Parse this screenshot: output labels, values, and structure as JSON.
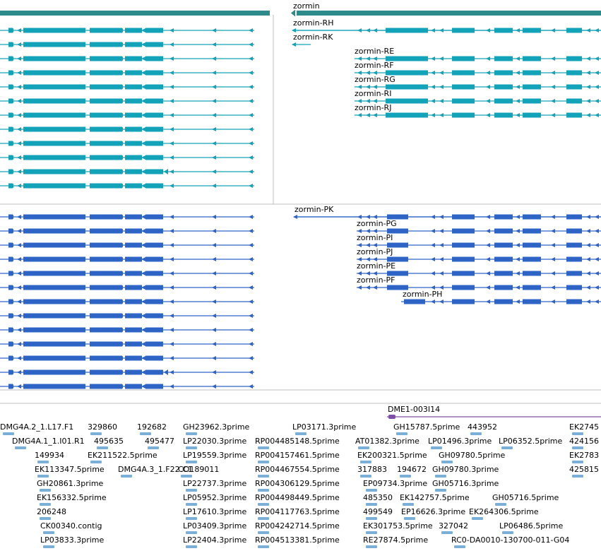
{
  "colors": {
    "gene_bar": "#2e8b8b",
    "transcript_teal": "#13a3b8",
    "transcript_blue": "#2f64c7",
    "est": "#7ab0d8",
    "primer": "#7f4fa8",
    "divider": "#bfbfbf"
  },
  "gene_label": "zormin",
  "teal_labels": [
    "zormin-RH",
    "zormin-RK",
    "zormin-RE",
    "zormin-RF",
    "zormin-RG",
    "zormin-RI",
    "zormin-RJ"
  ],
  "blue_labels": [
    "zormin-PK",
    "zormin-PG",
    "zormin-PI",
    "zormin-PJ",
    "zormin-PE",
    "zormin-PF",
    "zormin-PH"
  ],
  "primer_label": "DME1-003I14",
  "est_rows": [
    [
      "DMG4A.2_1.L17.F1",
      "329860",
      "192682",
      "GH23962.3prime",
      "LP03171.3prime",
      "GH15787.5prime",
      "443952",
      "EK2745"
    ],
    [
      "DMG4A.1_1.I01.R1",
      "495635",
      "495477",
      "LP22030.3prime",
      "RP004485148.5prime",
      "AT01382.3prime",
      "LP01496.3prime",
      "LP06352.5prime",
      "424156"
    ],
    [
      "149934",
      "EK211522.5prime",
      "LP19559.3prime",
      "RP004157461.5prime",
      "EK200321.5prime",
      "GH09780.5prime",
      "EK2783"
    ],
    [
      "EK113347.5prime",
      "DMG4A.3_1.F22.C1",
      "CO189011",
      "RP004467554.5prime",
      "317883",
      "194672",
      "GH09780.3prime",
      "425815"
    ],
    [
      "GH20861.3prime",
      "LP22737.3prime",
      "RP004306129.5prime",
      "EP09734.3prime",
      "GH05716.3prime"
    ],
    [
      "EK156332.5prime",
      "LP05952.3prime",
      "RP004498449.5prime",
      "485350",
      "EK142757.5prime",
      "GH05716.5prime"
    ],
    [
      "206248",
      "LP17610.3prime",
      "RP004117763.5prime",
      "499549",
      "EP16626.3prime",
      "EK264306.5prime"
    ],
    [
      "CK00340.contig",
      "LP03409.3prime",
      "RP004242714.5prime",
      "EK301753.5prime",
      "327042",
      "LP06486.5prime"
    ],
    [
      "LP03833.3prime",
      "LP22404.3prime",
      "RP004513381.5prime",
      "RE27874.5prime",
      "RC0-DA0010-130700-011-G04"
    ]
  ]
}
